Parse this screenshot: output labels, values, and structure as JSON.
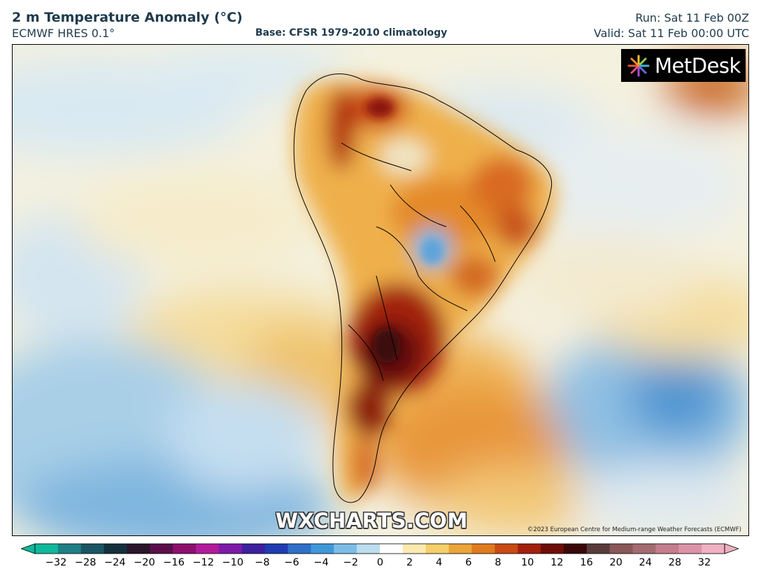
{
  "header": {
    "title": "2 m Temperature Anomaly (°C)",
    "model": "ECMWF HRES 0.1°",
    "base": "Base: CFSR 1979-2010 climatology",
    "run": "Run: Sat 11 Feb 00Z",
    "valid": "Valid: Sat 11 Feb 00:00 UTC"
  },
  "map": {
    "region": "South America",
    "logo_text": "MetDesk",
    "logo_icon": "metdesk-star-icon",
    "watermark": "WXCHARTS.COM",
    "copyright": "©2023 European Centre for Medium-range Weather Forecasts (ECMWF)"
  },
  "colorbar": {
    "ticks": [
      "−32",
      "−28",
      "−24",
      "−20",
      "−16",
      "−12",
      "−10",
      "−8",
      "−6",
      "−4",
      "−2",
      "0",
      "2",
      "4",
      "6",
      "8",
      "10",
      "12",
      "16",
      "20",
      "24",
      "28",
      "32"
    ],
    "colors": [
      "#0fb89a",
      "#1f7f86",
      "#1b5563",
      "#14303b",
      "#2b1528",
      "#5a0f4a",
      "#8c0f6e",
      "#b21a9c",
      "#7d1aa8",
      "#3d1fa0",
      "#1f3cb2",
      "#2f6fc8",
      "#3f98d8",
      "#7cbde6",
      "#bcdcf0",
      "#ffffff",
      "#fbeab0",
      "#f4cf6a",
      "#eba43a",
      "#e07a1e",
      "#c94a12",
      "#a3200c",
      "#6e0d07",
      "#3a0808",
      "#5a3b3b",
      "#8a5858",
      "#a46b72",
      "#c47d8c",
      "#dc92a6",
      "#eeb0c2"
    ]
  }
}
